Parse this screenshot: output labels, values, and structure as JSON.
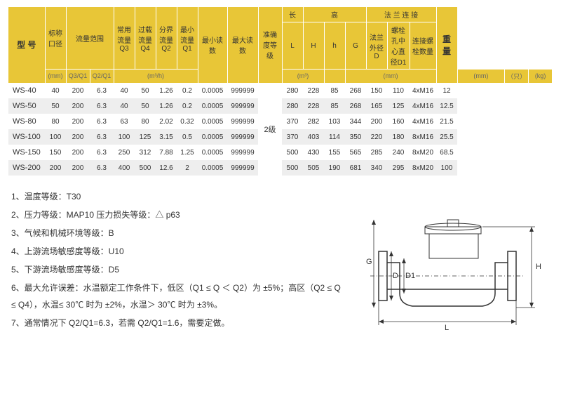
{
  "table": {
    "header_groups": {
      "model": "型 号",
      "nominal": "标称口径",
      "flow_range": "流量范围",
      "q3": "常用流量Q3",
      "q4": "过载流量Q4",
      "q2": "分界流量Q2",
      "q1": "最小流量Q1",
      "min_read": "最小读数",
      "max_read": "最大读数",
      "accuracy": "准确度等级",
      "L": "长",
      "high": "高",
      "H": "H",
      "sh": "h",
      "G": "G",
      "flange": "法 兰 连 接",
      "fd": "法兰外径D",
      "fd1": "螺栓孔中心直径D1",
      "fn": "连接螺栓数量",
      "weight": "重 量"
    },
    "sub": {
      "q3q1": "Q3/Q1",
      "q2q1": "Q2/Q1"
    },
    "units": {
      "mm": "(mm)",
      "m3h": "(m³/h)",
      "m3": "(m³)",
      "zhi": "（只）",
      "kg": "(kg)"
    },
    "accuracy_value": "2级",
    "rows": [
      {
        "model": "WS-40",
        "dn": "40",
        "q3q1": "200",
        "q2q1": "6.3",
        "q3": "40",
        "q4": "50",
        "q2": "1.26",
        "q1": "0.2",
        "minr": "0.0005",
        "maxr": "999999",
        "L": "280",
        "H": "228",
        "h": "85",
        "G": "268",
        "D": "150",
        "D1": "110",
        "bolts": "4xM16",
        "kg": "12"
      },
      {
        "model": "WS-50",
        "dn": "50",
        "q3q1": "200",
        "q2q1": "6.3",
        "q3": "40",
        "q4": "50",
        "q2": "1.26",
        "q1": "0.2",
        "minr": "0.0005",
        "maxr": "999999",
        "L": "280",
        "H": "228",
        "h": "85",
        "G": "268",
        "D": "165",
        "D1": "125",
        "bolts": "4xM16",
        "kg": "12.5"
      },
      {
        "model": "WS-80",
        "dn": "80",
        "q3q1": "200",
        "q2q1": "6.3",
        "q3": "63",
        "q4": "80",
        "q2": "2.02",
        "q1": "0.32",
        "minr": "0.0005",
        "maxr": "999999",
        "L": "370",
        "H": "282",
        "h": "103",
        "G": "344",
        "D": "200",
        "D1": "160",
        "bolts": "4xM16",
        "kg": "21.5"
      },
      {
        "model": "WS-100",
        "dn": "100",
        "q3q1": "200",
        "q2q1": "6.3",
        "q3": "100",
        "q4": "125",
        "q2": "3.15",
        "q1": "0.5",
        "minr": "0.0005",
        "maxr": "999999",
        "L": "370",
        "H": "403",
        "h": "114",
        "G": "350",
        "D": "220",
        "D1": "180",
        "bolts": "8xM16",
        "kg": "25.5"
      },
      {
        "model": "WS-150",
        "dn": "150",
        "q3q1": "200",
        "q2q1": "6.3",
        "q3": "250",
        "q4": "312",
        "q2": "7.88",
        "q1": "1.25",
        "minr": "0.0005",
        "maxr": "999999",
        "L": "500",
        "H": "430",
        "h": "155",
        "G": "565",
        "D": "285",
        "D1": "240",
        "bolts": "8xM20",
        "kg": "68.5"
      },
      {
        "model": "WS-200",
        "dn": "200",
        "q3q1": "200",
        "q2q1": "6.3",
        "q3": "400",
        "q4": "500",
        "q2": "12.6",
        "q1": "2",
        "minr": "0.0005",
        "maxr": "999999",
        "L": "500",
        "H": "505",
        "h": "190",
        "G": "681",
        "D": "340",
        "D1": "295",
        "bolts": "8xM20",
        "kg": "100"
      }
    ]
  },
  "notes": [
    "1、温度等级：T30",
    "2、压力等级：MAP10  压力损失等级：△ p63",
    "3、气候和机械环境等级：B",
    "4、上游流场敏感度等级：U10",
    "5、下游流场敏感度等级：D5",
    "6、最大允许误差：水温额定工作条件下，低区（Q1 ≤ Q ＜ Q2）为 ±5%；高区（Q2 ≤ Q ≤ Q4），水温≤ 30℃ 时为 ±2%，水温＞ 30℃ 时为 ±3%。",
    "7、通常情况下 Q2/Q1=6.3，若需 Q2/Q1=1.6，需要定做。"
  ],
  "diagram_labels": {
    "G": "G",
    "D": "D",
    "D1": "D1",
    "L": "L",
    "H": "H"
  }
}
